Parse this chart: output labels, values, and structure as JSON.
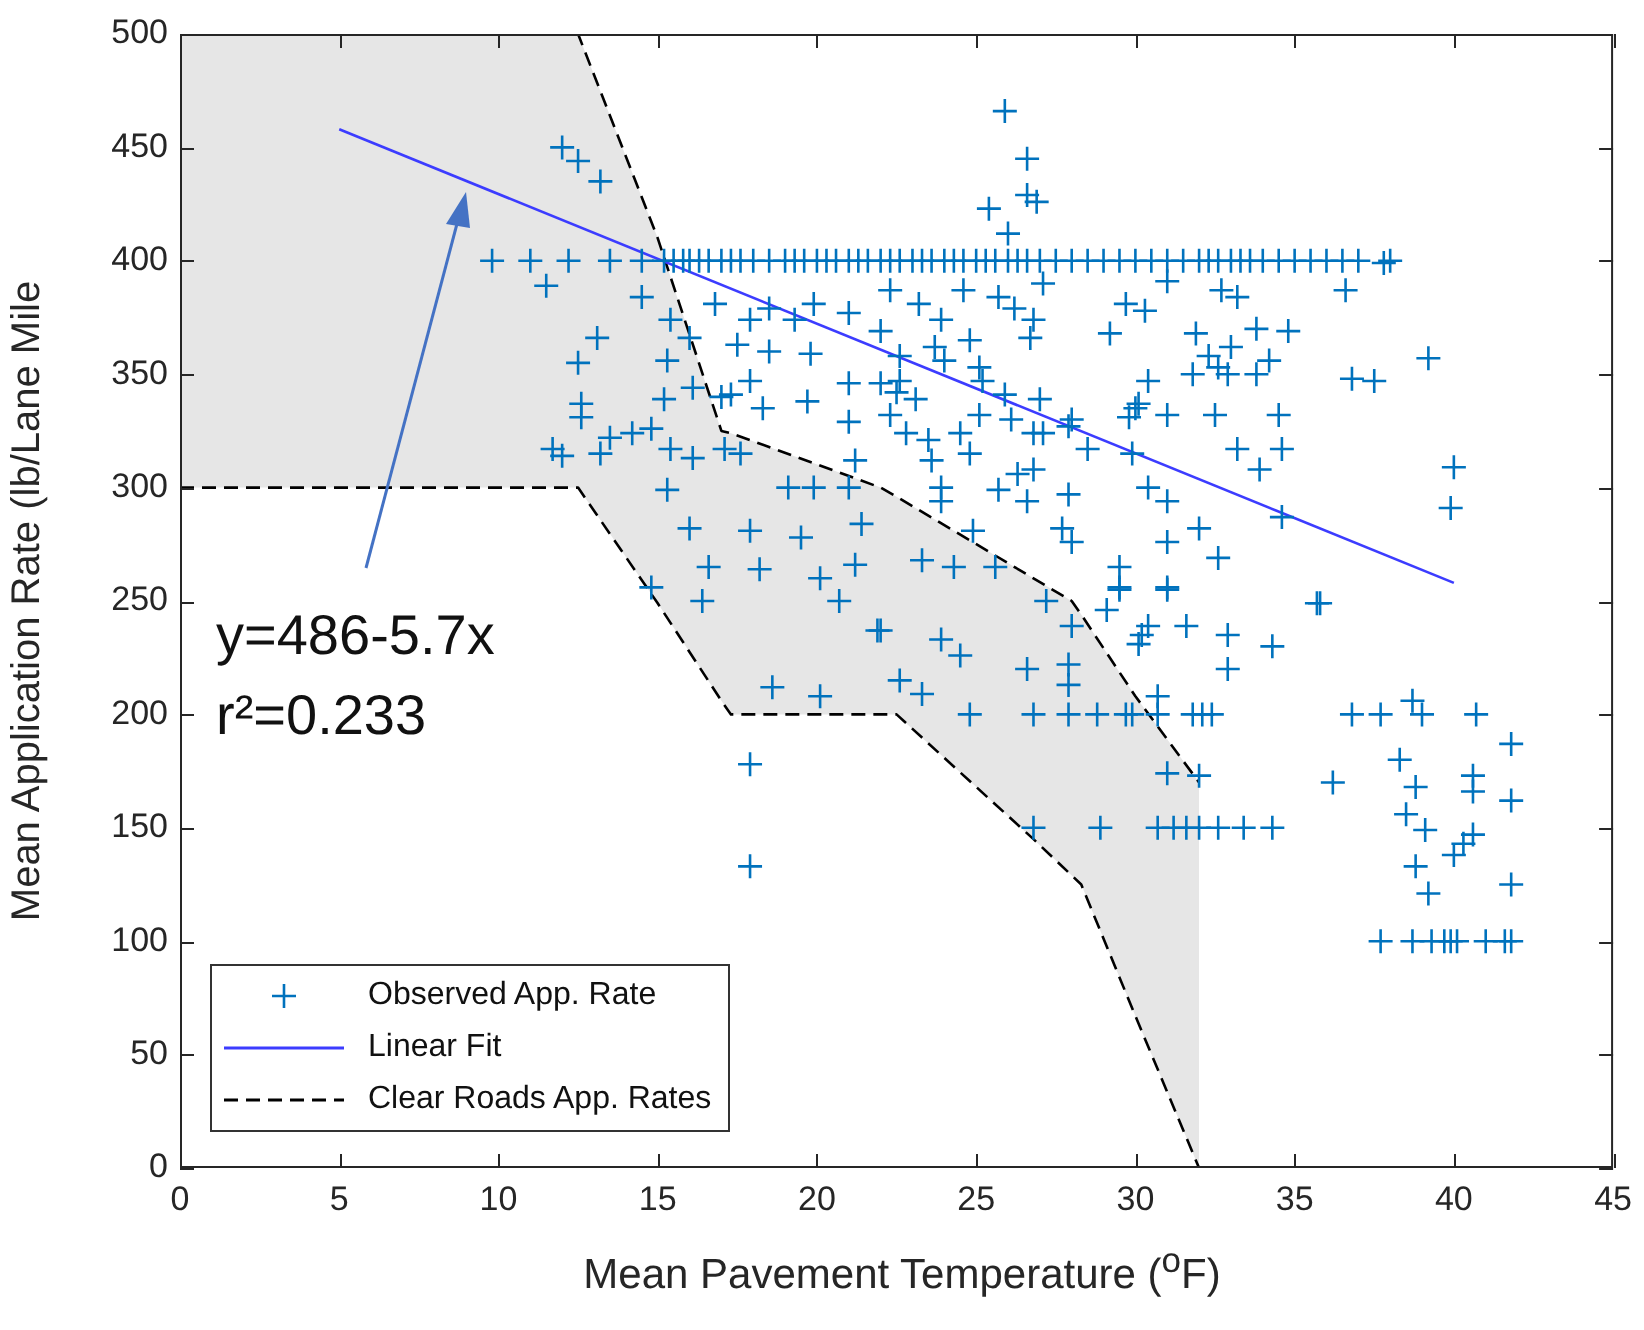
{
  "chart_data": {
    "type": "scatter",
    "xlabel": "Mean Pavement Temperature ($^{o}$F)",
    "ylabel": "Mean Application Rate (lb/Lane Mile",
    "xlim": [
      0,
      45
    ],
    "xticks": [
      0,
      5,
      10,
      15,
      20,
      25,
      30,
      35,
      40,
      45
    ],
    "ylim": [
      0,
      500
    ],
    "yticks": [
      0,
      50,
      100,
      150,
      200,
      250,
      300,
      350,
      400,
      450,
      500
    ],
    "grid": false,
    "legend": "bottom left",
    "annotations": [
      "y=486-5.7x",
      "r²=0.233"
    ],
    "series": [
      {
        "type": "scatter",
        "name": "Observed App. Rate",
        "color": "#0072bd",
        "marker": "cross",
        "x": [
          9.8,
          11,
          12.2,
          13.5,
          14.5,
          15.2,
          15.5,
          15.8,
          16,
          16.3,
          16.6,
          17,
          17.3,
          17.6,
          18,
          18.5,
          19,
          19.3,
          19.6,
          20,
          20.3,
          20.6,
          21,
          21.3,
          21.6,
          22,
          22.3,
          22.6,
          23,
          23.3,
          23.6,
          24,
          24.3,
          24.6,
          25,
          25.3,
          25.6,
          26,
          26.3,
          26.6,
          27,
          27.5,
          28,
          28.5,
          29,
          29.5,
          30,
          30.5,
          31,
          31.5,
          32,
          32.3,
          32.6,
          33,
          33.3,
          33.6,
          34,
          34.5,
          35,
          35.5,
          36,
          36.5,
          37,
          38,
          24.8,
          26.8,
          27.9,
          28.8,
          29.7,
          29.9,
          30.7,
          31.8,
          32.1,
          32.4,
          36.8,
          37.7,
          39,
          40.7,
          26.8,
          28.9,
          30.7,
          31.2,
          31.6,
          32,
          32.6,
          33.4,
          34.3,
          37.7,
          38.7,
          39.3,
          39.7,
          39.9,
          40.1,
          41,
          41.6,
          41.8,
          12,
          12.5,
          13.2,
          25.9,
          26.6,
          26.6,
          26.9,
          25.4,
          26,
          11.5,
          14.5,
          13.1,
          12.5,
          12.6,
          12.6,
          11.7,
          12,
          13.2,
          14.2,
          14.8,
          15.4,
          16.1,
          17.1,
          17.6,
          15.4,
          16,
          15.3,
          16.1,
          17,
          17.3,
          17.9,
          16.8,
          17.9,
          18.5,
          19.3,
          19.9,
          21,
          22,
          17.5,
          18.5,
          19.8,
          21,
          22,
          22.6,
          18.3,
          19.7,
          21,
          22.5,
          15.2,
          13.5,
          21.2,
          19.1,
          19.9,
          21,
          15.3,
          16,
          17.9,
          19.5,
          21.4,
          16.6,
          18.2,
          20.1,
          21.2,
          14.8,
          16.4,
          20.7,
          17.9,
          17.9,
          18.6,
          20.1,
          21.9,
          22,
          23.9,
          24.5,
          22.6,
          23.3,
          26.6,
          27.9,
          27.9,
          28,
          30.4,
          30.1,
          31.6,
          32.9,
          32.9,
          34.3,
          30.7,
          31,
          32,
          35.8,
          29.5,
          31,
          27.2,
          29.1,
          30.2,
          22.3,
          23.2,
          24.6,
          25.7,
          26.2,
          26.8,
          26.7,
          27.1,
          23.9,
          24.8,
          23.7,
          24,
          25.1,
          25.2,
          22.6,
          23.1,
          22.3,
          22.8,
          23.5,
          24.5,
          24.8,
          23.6,
          23.9,
          25.7,
          26.6,
          25.1,
          27,
          27.1,
          26.8,
          27.9,
          27.9,
          27.7,
          28,
          28.5,
          29.9,
          30.4,
          31,
          32,
          32.6,
          31,
          29.5,
          29.5,
          31,
          24.3,
          25.6,
          23.3,
          24.9,
          23.9,
          29.8,
          30.1,
          31,
          32.5,
          33.2,
          33.9,
          34.6,
          34.5,
          34.2,
          33.8,
          33,
          32.6,
          32.9,
          31.8,
          32.3,
          31.9,
          33.8,
          34.8,
          30.4,
          30,
          29.2,
          29.7,
          30.3,
          31,
          32.7,
          33.2,
          26.8,
          28,
          25.9,
          26.1,
          26.3,
          34.6,
          35.7,
          38.7,
          41.8,
          36.2,
          38.3,
          38.8,
          40.6,
          40.6,
          41.8,
          38.5,
          39.1,
          40.6,
          40.3,
          40,
          38.8,
          39.2,
          41.8,
          39.2,
          40,
          39.9,
          36.8,
          37.5,
          37.8,
          36.6
        ],
        "values": [
          400,
          400,
          400,
          400,
          400,
          400,
          400,
          400,
          400,
          400,
          400,
          400,
          400,
          400,
          400,
          400,
          400,
          400,
          400,
          400,
          400,
          400,
          400,
          400,
          400,
          400,
          400,
          400,
          400,
          400,
          400,
          400,
          400,
          400,
          400,
          400,
          400,
          400,
          400,
          400,
          400,
          400,
          400,
          400,
          400,
          400,
          400,
          400,
          400,
          400,
          400,
          400,
          400,
          400,
          400,
          400,
          400,
          400,
          400,
          400,
          400,
          400,
          400,
          400,
          200,
          200,
          200,
          200,
          200,
          200,
          200,
          200,
          200,
          200,
          200,
          200,
          200,
          200,
          150,
          150,
          150,
          150,
          150,
          150,
          150,
          150,
          150,
          100,
          100,
          100,
          100,
          100,
          100,
          100,
          100,
          100,
          450,
          444,
          435,
          466,
          445,
          429,
          426,
          423,
          412,
          389,
          384,
          366,
          355,
          337,
          331,
          317,
          314,
          315,
          324,
          326,
          317,
          313,
          317,
          315,
          374,
          366,
          356,
          344,
          340,
          341,
          347,
          381,
          374,
          379,
          374,
          381,
          377,
          369,
          363,
          360,
          359,
          346,
          346,
          358,
          335,
          338,
          329,
          342,
          339,
          322,
          312,
          300,
          300,
          300,
          299,
          282,
          281,
          278,
          284,
          265,
          264,
          260,
          266,
          256,
          250,
          250,
          178,
          133,
          212,
          208,
          237,
          237,
          233,
          226,
          215,
          209,
          220,
          222,
          213,
          239,
          239,
          231,
          239,
          235,
          220,
          230,
          208,
          174,
          173,
          249,
          255,
          255,
          250,
          246,
          235,
          387,
          381,
          387,
          384,
          379,
          374,
          366,
          390,
          374,
          365,
          362,
          356,
          353,
          347,
          347,
          339,
          332,
          324,
          321,
          324,
          315,
          312,
          300,
          299,
          294,
          332,
          339,
          324,
          308,
          327,
          297,
          282,
          276,
          317,
          315,
          300,
          294,
          282,
          269,
          276,
          265,
          256,
          256,
          265,
          265,
          268,
          281,
          294,
          331,
          337,
          332,
          332,
          317,
          308,
          317,
          332,
          356,
          350,
          362,
          353,
          350,
          350,
          358,
          368,
          370,
          369,
          347,
          335,
          368,
          381,
          378,
          391,
          387,
          384,
          324,
          330,
          341,
          330,
          306,
          287,
          249,
          206,
          187,
          170,
          180,
          168,
          173,
          166,
          162,
          156,
          149,
          147,
          143,
          138,
          133,
          121,
          125,
          357,
          309,
          291,
          348,
          347,
          399,
          387
        ]
      },
      {
        "type": "line",
        "name": "Linear Fit",
        "color": "#3c3cff",
        "line_style": "solid",
        "marker": "none",
        "x": [
          5,
          40
        ],
        "values": [
          458,
          258
        ]
      },
      {
        "type": "line",
        "name": "Clear Roads App. Rates",
        "color": "#000000",
        "line_style": "dashed",
        "marker": "none",
        "x": [
          0,
          12.5,
          15,
          17,
          17.3,
          22,
          22.5,
          26.8,
          28,
          28.3,
          30,
          32
        ],
        "values": [
          500,
          500,
          410,
          325,
          324,
          300,
          296,
          260,
          250,
          244,
          208,
          170
        ],
        "upper": [
          500,
          500,
          410,
          325,
          324,
          300,
          296,
          260,
          250,
          244,
          208,
          170
        ],
        "lower": [
          300,
          300,
          249,
          206,
          200,
          200,
          200,
          145,
          129,
          125,
          67,
          0
        ]
      },
      {
        "type": "line",
        "color": "#000000",
        "line_style": "dashed",
        "marker": "none",
        "x": [
          0,
          12.5,
          15,
          17,
          17.3,
          22,
          22.5,
          26.8,
          28,
          28.3,
          30,
          32
        ],
        "values": [
          300,
          300,
          249,
          206,
          200,
          200,
          200,
          145,
          129,
          125,
          67,
          0
        ]
      }
    ]
  }
}
